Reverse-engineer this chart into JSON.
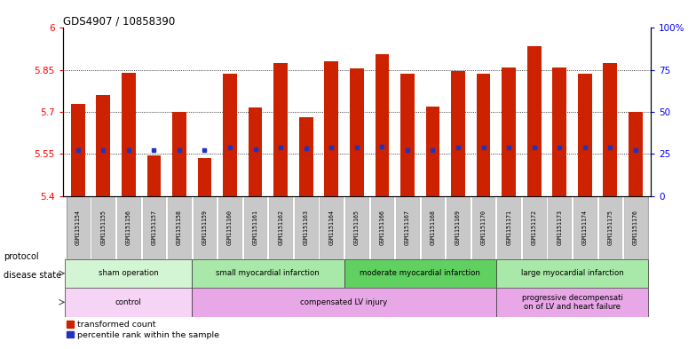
{
  "title": "GDS4907 / 10858390",
  "samples": [
    "GSM1151154",
    "GSM1151155",
    "GSM1151156",
    "GSM1151157",
    "GSM1151158",
    "GSM1151159",
    "GSM1151160",
    "GSM1151161",
    "GSM1151162",
    "GSM1151163",
    "GSM1151164",
    "GSM1151165",
    "GSM1151166",
    "GSM1151167",
    "GSM1151168",
    "GSM1151169",
    "GSM1151170",
    "GSM1151171",
    "GSM1151172",
    "GSM1151173",
    "GSM1151174",
    "GSM1151175",
    "GSM1151176"
  ],
  "bar_values": [
    5.73,
    5.76,
    5.84,
    5.545,
    5.7,
    5.535,
    5.835,
    5.715,
    5.875,
    5.68,
    5.88,
    5.855,
    5.905,
    5.835,
    5.72,
    5.845,
    5.835,
    5.86,
    5.935,
    5.86,
    5.835,
    5.875,
    5.7
  ],
  "percentile_values": [
    5.565,
    5.565,
    5.565,
    5.563,
    5.563,
    5.563,
    5.573,
    5.568,
    5.572,
    5.57,
    5.572,
    5.572,
    5.575,
    5.565,
    5.565,
    5.572,
    5.572,
    5.573,
    5.573,
    5.572,
    5.572,
    5.572,
    5.565
  ],
  "ylim_left": [
    5.4,
    6.0
  ],
  "ylim_right": [
    0,
    100
  ],
  "yticks_left": [
    5.4,
    5.55,
    5.7,
    5.85,
    6.0
  ],
  "yticks_right": [
    0,
    25,
    50,
    75,
    100
  ],
  "ytick_labels_left": [
    "5.4",
    "5.55",
    "5.7",
    "5.85",
    "6"
  ],
  "ytick_labels_right": [
    "0",
    "25",
    "50",
    "75",
    "100%"
  ],
  "bar_color": "#cc2200",
  "dot_color": "#2233bb",
  "grid_values": [
    5.55,
    5.7,
    5.85
  ],
  "protocol_groups": [
    {
      "label": "sham operation",
      "start": 0,
      "end": 5,
      "color": "#d4f5d4"
    },
    {
      "label": "small myocardial infarction",
      "start": 5,
      "end": 11,
      "color": "#a8e8a8"
    },
    {
      "label": "moderate myocardial infarction",
      "start": 11,
      "end": 17,
      "color": "#60d060"
    },
    {
      "label": "large myocardial infarction",
      "start": 17,
      "end": 23,
      "color": "#a8e8a8"
    }
  ],
  "disease_groups": [
    {
      "label": "control",
      "start": 0,
      "end": 5,
      "color": "#f5d4f5"
    },
    {
      "label": "compensated LV injury",
      "start": 5,
      "end": 17,
      "color": "#e8a8e8"
    },
    {
      "label": "progressive decompensati\non of LV and heart failure",
      "start": 17,
      "end": 23,
      "color": "#e8a8e8"
    }
  ],
  "legend_labels": [
    "transformed count",
    "percentile rank within the sample"
  ],
  "bar_width": 0.55,
  "xtick_bg": "#c8c8c8",
  "spine_color": "#888888"
}
